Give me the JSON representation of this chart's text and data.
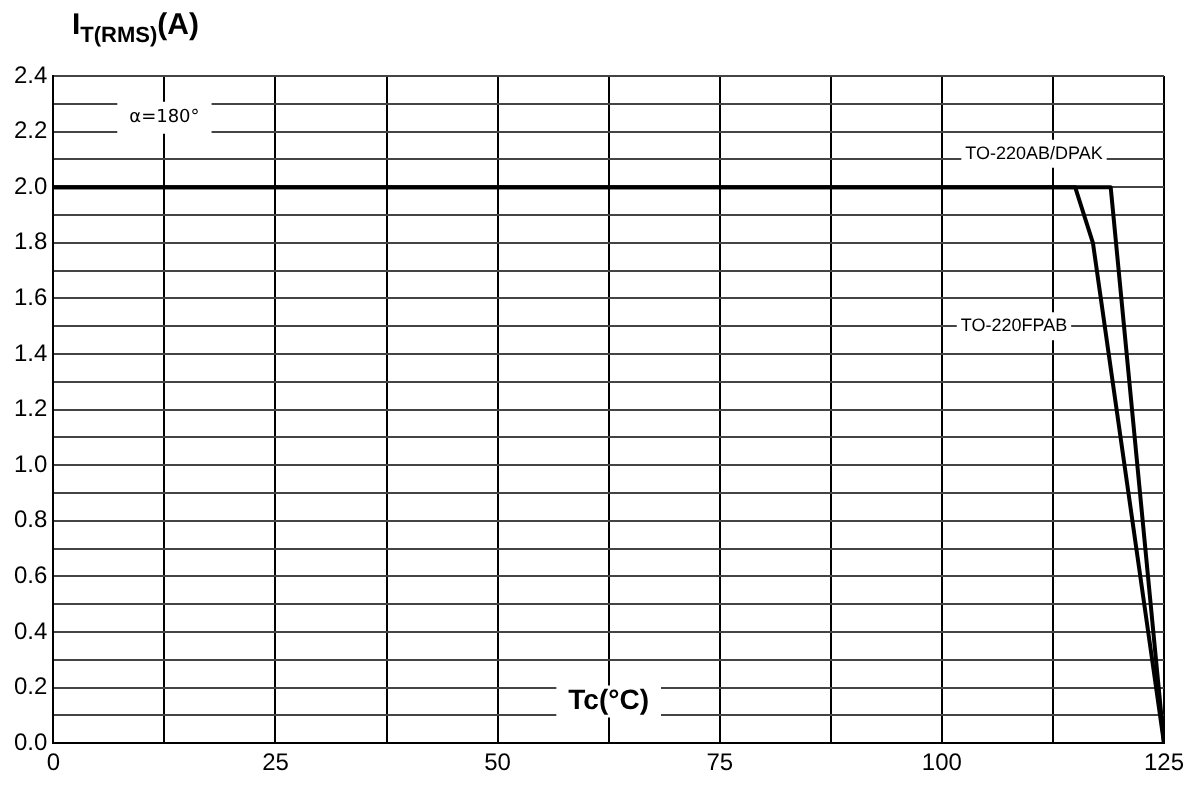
{
  "chart_data": {
    "type": "line",
    "xlabel": "Tc(°C)",
    "ylabel": "I$_{T(RMS)}$(A)",
    "annotations": [
      "α=180°"
    ],
    "xlim": [
      0,
      125
    ],
    "xticks": [
      0,
      {
        "value": 12.5,
        "label": null
      },
      25,
      {
        "value": 37.5,
        "label": null
      },
      50,
      {
        "value": 62.5,
        "label": null
      },
      75,
      {
        "value": 87.5,
        "label": null
      },
      100,
      {
        "value": 112.5,
        "label": null
      },
      125
    ],
    "ylim": [
      0,
      2.4
    ],
    "yticks": [
      {
        "value": 0,
        "label": "0.0"
      },
      {
        "value": 0.1,
        "label": null
      },
      {
        "value": 0.2,
        "label": "0.2"
      },
      {
        "value": 0.3,
        "label": null
      },
      {
        "value": 0.4,
        "label": "0.4"
      },
      {
        "value": 0.5,
        "label": null
      },
      {
        "value": 0.6,
        "label": "0.6"
      },
      {
        "value": 0.7,
        "label": null
      },
      {
        "value": 0.8,
        "label": "0.8"
      },
      {
        "value": 0.9,
        "label": null
      },
      {
        "value": 1,
        "label": "1.0"
      },
      {
        "value": 1.1,
        "label": null
      },
      {
        "value": 1.2,
        "label": "1.2"
      },
      {
        "value": 1.3,
        "label": null
      },
      {
        "value": 1.4,
        "label": "1.4"
      },
      {
        "value": 1.5,
        "label": null
      },
      {
        "value": 1.6,
        "label": "1.6"
      },
      {
        "value": 1.7,
        "label": null
      },
      {
        "value": 1.8,
        "label": "1.8"
      },
      {
        "value": 1.9,
        "label": null
      },
      {
        "value": 2,
        "label": "2.0"
      },
      {
        "value": 2.1,
        "label": null
      },
      {
        "value": 2.2,
        "label": "2.2"
      },
      {
        "value": 2.3,
        "label": null
      },
      {
        "value": 2.4,
        "label": "2.4"
      }
    ],
    "grid": true,
    "legend": false,
    "marker": "none",
    "line_style": "solid",
    "series": [
      {
        "name": "TO-220AB/DPAK",
        "color": "#000000",
        "x": [
          0,
          119,
          125
        ],
        "values": [
          2,
          2,
          0
        ]
      },
      {
        "name": "TO-220FPAB",
        "color": "#000000",
        "x": [
          0,
          115,
          117,
          125
        ],
        "values": [
          2,
          2,
          1.8,
          0
        ]
      }
    ]
  }
}
